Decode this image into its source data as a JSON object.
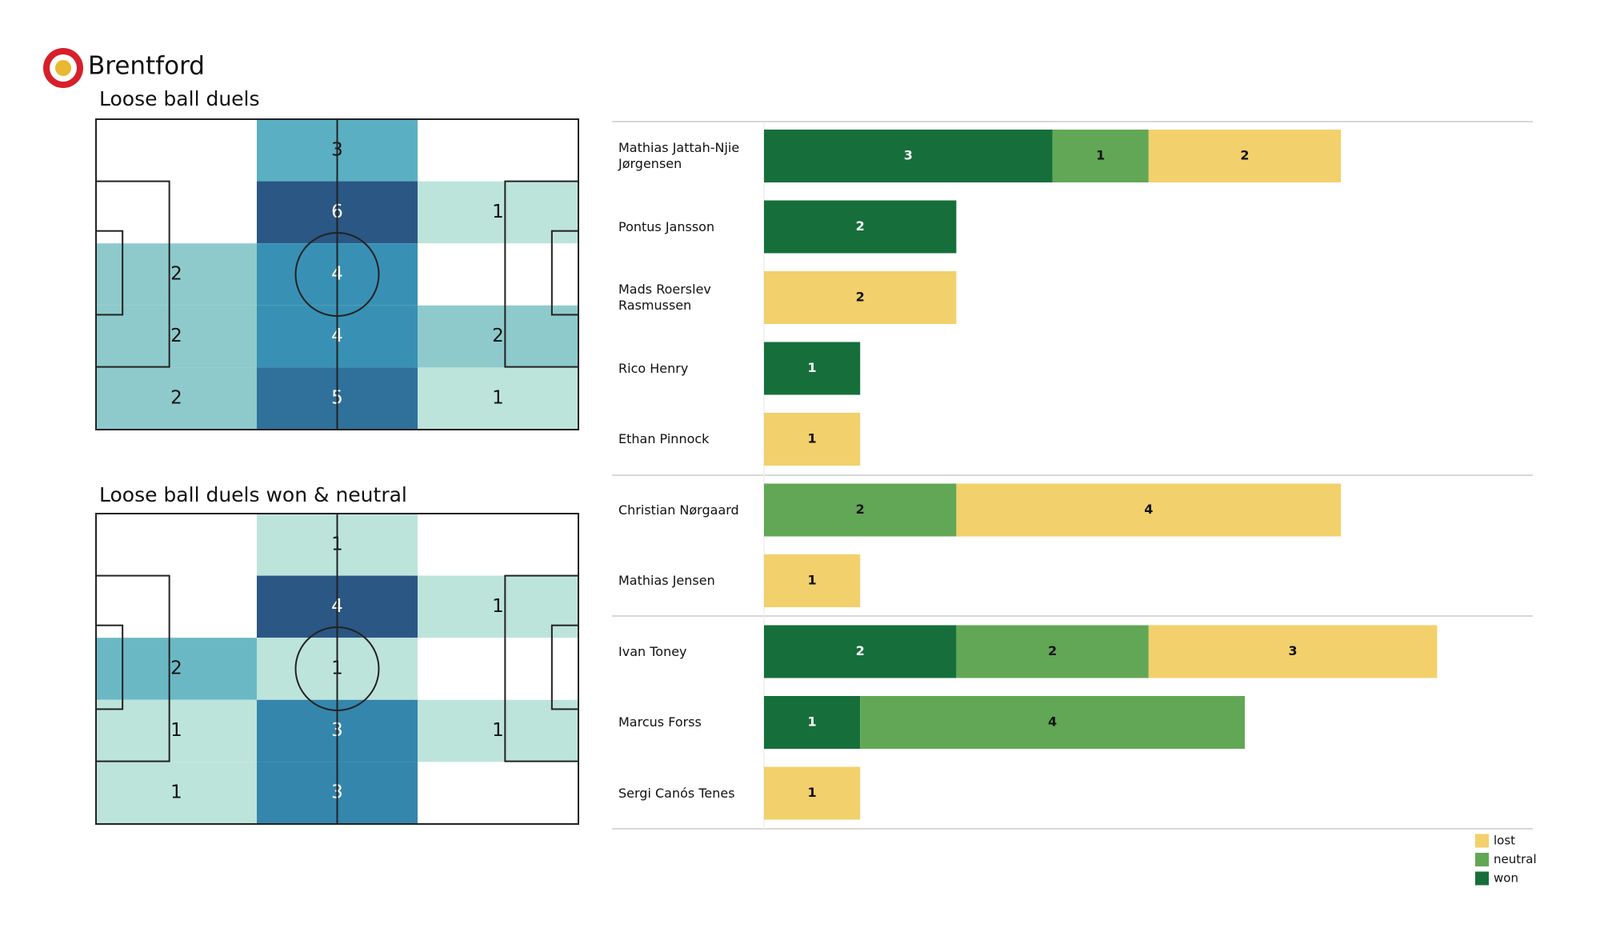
{
  "header": {
    "title": "Brentford"
  },
  "chart_data": [
    {
      "type": "heatmap",
      "title": "Loose ball duels",
      "values": [
        [
          null,
          3,
          null
        ],
        [
          null,
          6,
          1
        ],
        [
          2,
          4,
          null
        ],
        [
          2,
          4,
          2
        ],
        [
          2,
          5,
          1
        ]
      ],
      "colormap": [
        "#bde4db",
        "#8ecacc",
        "#5aafc2",
        "#3891b4",
        "#2f719b",
        "#2b5784"
      ]
    },
    {
      "type": "heatmap",
      "title": "Loose ball duels won & neutral",
      "values": [
        [
          null,
          1,
          null
        ],
        [
          null,
          4,
          1
        ],
        [
          2,
          1,
          null
        ],
        [
          1,
          3,
          1
        ],
        [
          1,
          3,
          null
        ]
      ],
      "colormap": [
        "#bde4db",
        "#8ecacc",
        "#5aafc2",
        "#3891b4",
        "#2f719b",
        "#2b5784"
      ]
    },
    {
      "type": "bar",
      "orientation": "horizontal",
      "stacked": true,
      "categories": [
        "Mathias Jattah-Njie Jørgensen",
        "Pontus Jansson",
        "Mads Roerslev Rasmussen",
        "Rico Henry",
        "Ethan Pinnock",
        "Christian Nørgaard",
        "Mathias Jensen",
        "Ivan Toney",
        "Marcus Forss",
        "Sergi Canós Tenes"
      ],
      "series": [
        {
          "name": "won",
          "color": "#166f3a",
          "values": [
            3,
            2,
            0,
            1,
            0,
            0,
            0,
            2,
            1,
            0
          ]
        },
        {
          "name": "neutral",
          "color": "#62a755",
          "values": [
            1,
            0,
            0,
            0,
            0,
            2,
            0,
            2,
            4,
            0
          ]
        },
        {
          "name": "lost",
          "color": "#f2d06b",
          "values": [
            2,
            0,
            2,
            0,
            1,
            4,
            1,
            3,
            0,
            1
          ]
        }
      ],
      "legend": "lower right"
    }
  ]
}
